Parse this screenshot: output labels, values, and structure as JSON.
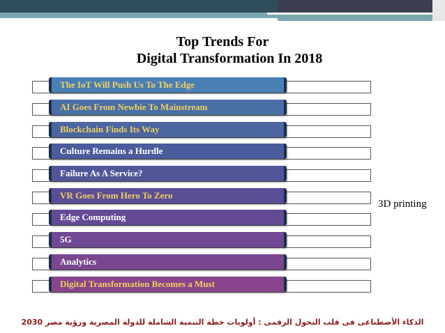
{
  "title": {
    "line1": "Top Trends For",
    "line2": "Digital Transformation In 2018"
  },
  "trends": [
    {
      "label": "The IoT Will Push Us To The Edge",
      "text_color": "#f0d060",
      "fill": "#4a7fb5"
    },
    {
      "label": "AI Goes From Newbie To Mainstream",
      "text_color": "#f0d060",
      "fill": "#4a6fa5"
    },
    {
      "label": "Blockchain Finds Its Way",
      "text_color": "#f0d060",
      "fill": "#4a65a0"
    },
    {
      "label": "Culture Remains a Hurdle",
      "text_color": "#ffffff",
      "fill": "#4b5c9c"
    },
    {
      "label": "Failure As A Service?",
      "text_color": "#ffffff",
      "fill": "#515698"
    },
    {
      "label": "VR Goes From Hero To Zero",
      "text_color": "#f0d060",
      "fill": "#5a4f96"
    },
    {
      "label": "Edge Computing",
      "text_color": "#ffffff",
      "fill": "#644a95"
    },
    {
      "label": "5G",
      "text_color": "#ffffff",
      "fill": "#704893"
    },
    {
      "label": "Analytics",
      "text_color": "#ffffff",
      "fill": "#7b4690"
    },
    {
      "label": "Digital Transformation Becomes a Must",
      "text_color": "#f0d060",
      "fill": "#88448c"
    }
  ],
  "side_note": "3D printing",
  "footer": "الذكاء الأصطناعى فى قلب التحول الرقمى  :  أولويات خطة التنمية الشاملة للدولة المصرية ورؤية مصر 2030"
}
